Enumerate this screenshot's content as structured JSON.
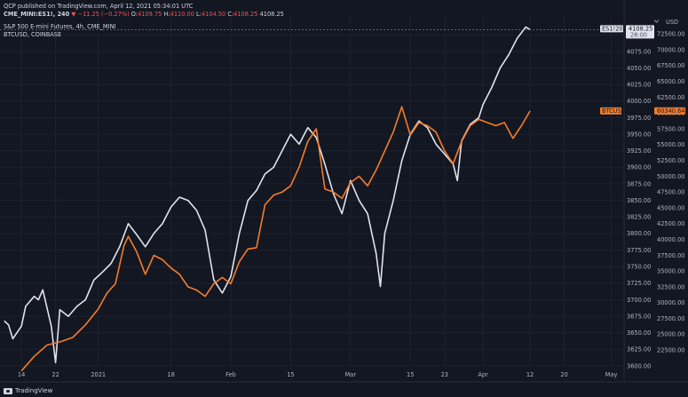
{
  "header": {
    "published_line": "QCP published on TradingView.com, April 12, 2021 05:34:01 UTC",
    "symbol": "CME_MINI:ES1!, 240",
    "change_symbol": "▼",
    "change": "−11.25 (−0.27%)",
    "o_label": "O:",
    "o_value": "4109.75",
    "h_label": "H:",
    "h_value": "4110.00",
    "l_label": "L:",
    "l_value": "4104.50",
    "c_label": "C:",
    "c_value": "4108.25",
    "last": "4108.25",
    "legend_1": "S&P 500 E-mini Futures, 4h, CME_MINI",
    "legend_2": "BTCUSD, COINBASE"
  },
  "currency_label": "USD",
  "currency_menu_icon": "chevron-down-icon",
  "footer": {
    "brand": "TradingView",
    "logo_icon": "tradingview-logo-icon"
  },
  "colors": {
    "background": "#131722",
    "es": "#e0e3eb",
    "btc": "#f57c2a",
    "text": "#b2b5be"
  },
  "chart_data": {
    "type": "line",
    "x_tick_labels": [
      "14",
      "22",
      "2021",
      "18",
      "Feb",
      "15",
      "Mar",
      "15",
      "23",
      "Apr",
      "12",
      "20",
      "May"
    ],
    "x_tick_dates": [
      "2020-12-14",
      "2020-12-22",
      "2021-01-01",
      "2021-01-18",
      "2021-02-01",
      "2021-02-15",
      "2021-03-01",
      "2021-03-15",
      "2021-03-23",
      "2021-04-01",
      "2021-04-12",
      "2021-04-20",
      "2021-05-01"
    ],
    "xlim": [
      "2020-12-09",
      "2021-05-04"
    ],
    "axes": [
      {
        "name": "ES",
        "position": "right-inner",
        "ylim": [
          3600,
          4130
        ],
        "ticks": [
          3600,
          3625,
          3650,
          3675,
          3700,
          3725,
          3750,
          3775,
          3800,
          3825,
          3850,
          3875,
          3900,
          3925,
          3950,
          3975,
          4000,
          4025,
          4050,
          4075,
          4100
        ],
        "tick_labels": [
          "3600.00",
          "3625.00",
          "3650.00",
          "3675.00",
          "3700.00",
          "3725.00",
          "3750.00",
          "3775.00",
          "3800.00",
          "3825.00",
          "3850.00",
          "3875.00",
          "3900.00",
          "3925.00",
          "3950.00",
          "3975.00",
          "4000.00",
          "4025.00",
          "4050.00",
          "4075.00",
          "4100.00"
        ]
      },
      {
        "name": "BTCUSD",
        "position": "right-outer",
        "ylim": [
          20000,
          75500
        ],
        "ticks": [
          22500,
          25000,
          27500,
          30000,
          32500,
          35000,
          37500,
          40000,
          42500,
          45000,
          47500,
          50000,
          52500,
          55000,
          57500,
          60000,
          62500,
          65000,
          67500,
          70000,
          72500
        ],
        "tick_labels": [
          "22500.00",
          "25000.00",
          "27500.00",
          "30000.00",
          "32500.00",
          "35000.00",
          "37500.00",
          "40000.00",
          "42500.00",
          "45000.00",
          "47500.00",
          "50000.00",
          "52500.00",
          "55000.00",
          "57500.00",
          "60000.00",
          "62500.00",
          "65000.00",
          "67500.00",
          "70000.00",
          "72500.00"
        ]
      }
    ],
    "grid": true,
    "series": [
      {
        "name": "ES1!",
        "axis": "ES",
        "color": "#e0e3eb",
        "price_badge": "4108.25",
        "badge_name": "ES1!2021",
        "badge_time": "26:00",
        "points": [
          [
            "2020-12-10",
            3668
          ],
          [
            "2020-12-11",
            3662
          ],
          [
            "2020-12-12",
            3641
          ],
          [
            "2020-12-14",
            3660
          ],
          [
            "2020-12-15",
            3690
          ],
          [
            "2020-12-17",
            3705
          ],
          [
            "2020-12-18",
            3700
          ],
          [
            "2020-12-19",
            3715
          ],
          [
            "2020-12-21",
            3660
          ],
          [
            "2020-12-22",
            3605
          ],
          [
            "2020-12-23",
            3685
          ],
          [
            "2020-12-25",
            3675
          ],
          [
            "2020-12-27",
            3690
          ],
          [
            "2020-12-29",
            3700
          ],
          [
            "2020-12-31",
            3730
          ],
          [
            "2021-01-02",
            3742
          ],
          [
            "2021-01-04",
            3755
          ],
          [
            "2021-01-06",
            3780
          ],
          [
            "2021-01-08",
            3815
          ],
          [
            "2021-01-10",
            3798
          ],
          [
            "2021-01-12",
            3780
          ],
          [
            "2021-01-14",
            3800
          ],
          [
            "2021-01-16",
            3815
          ],
          [
            "2021-01-18",
            3840
          ],
          [
            "2021-01-20",
            3855
          ],
          [
            "2021-01-22",
            3850
          ],
          [
            "2021-01-24",
            3835
          ],
          [
            "2021-01-26",
            3805
          ],
          [
            "2021-01-28",
            3730
          ],
          [
            "2021-01-30",
            3710
          ],
          [
            "2021-02-01",
            3735
          ],
          [
            "2021-02-03",
            3800
          ],
          [
            "2021-02-05",
            3850
          ],
          [
            "2021-02-07",
            3865
          ],
          [
            "2021-02-09",
            3890
          ],
          [
            "2021-02-11",
            3900
          ],
          [
            "2021-02-13",
            3925
          ],
          [
            "2021-02-15",
            3950
          ],
          [
            "2021-02-17",
            3935
          ],
          [
            "2021-02-19",
            3960
          ],
          [
            "2021-02-21",
            3945
          ],
          [
            "2021-02-23",
            3905
          ],
          [
            "2021-02-25",
            3860
          ],
          [
            "2021-02-27",
            3830
          ],
          [
            "2021-03-01",
            3880
          ],
          [
            "2021-03-03",
            3850
          ],
          [
            "2021-03-05",
            3830
          ],
          [
            "2021-03-07",
            3770
          ],
          [
            "2021-03-08",
            3720
          ],
          [
            "2021-03-09",
            3800
          ],
          [
            "2021-03-11",
            3850
          ],
          [
            "2021-03-13",
            3910
          ],
          [
            "2021-03-15",
            3950
          ],
          [
            "2021-03-17",
            3970
          ],
          [
            "2021-03-19",
            3960
          ],
          [
            "2021-03-21",
            3935
          ],
          [
            "2021-03-23",
            3920
          ],
          [
            "2021-03-25",
            3905
          ],
          [
            "2021-03-26",
            3880
          ],
          [
            "2021-03-27",
            3940
          ],
          [
            "2021-03-29",
            3965
          ],
          [
            "2021-03-31",
            3975
          ],
          [
            "2021-04-01",
            3995
          ],
          [
            "2021-04-03",
            4020
          ],
          [
            "2021-04-05",
            4050
          ],
          [
            "2021-04-07",
            4070
          ],
          [
            "2021-04-09",
            4095
          ],
          [
            "2021-04-11",
            4112
          ],
          [
            "2021-04-12",
            4108
          ]
        ]
      },
      {
        "name": "BTCUSD",
        "axis": "BTCUSD",
        "color": "#f57c2a",
        "price_badge": "60340.64",
        "badge_name": "BTCUSD",
        "points": [
          [
            "2020-12-14",
            19200
          ],
          [
            "2020-12-17",
            21500
          ],
          [
            "2020-12-20",
            23300
          ],
          [
            "2020-12-23",
            23800
          ],
          [
            "2020-12-26",
            24500
          ],
          [
            "2020-12-29",
            26500
          ],
          [
            "2021-01-01",
            29000
          ],
          [
            "2021-01-03",
            31500
          ],
          [
            "2021-01-05",
            33000
          ],
          [
            "2021-01-07",
            39000
          ],
          [
            "2021-01-08",
            40500
          ],
          [
            "2021-01-10",
            38000
          ],
          [
            "2021-01-12",
            34500
          ],
          [
            "2021-01-14",
            37500
          ],
          [
            "2021-01-16",
            36800
          ],
          [
            "2021-01-18",
            35500
          ],
          [
            "2021-01-20",
            34500
          ],
          [
            "2021-01-22",
            32500
          ],
          [
            "2021-01-24",
            32000
          ],
          [
            "2021-01-26",
            31000
          ],
          [
            "2021-01-28",
            33000
          ],
          [
            "2021-01-30",
            34000
          ],
          [
            "2021-02-01",
            33000
          ],
          [
            "2021-02-03",
            36500
          ],
          [
            "2021-02-05",
            38500
          ],
          [
            "2021-02-07",
            38700
          ],
          [
            "2021-02-09",
            45500
          ],
          [
            "2021-02-11",
            47000
          ],
          [
            "2021-02-13",
            47500
          ],
          [
            "2021-02-15",
            48500
          ],
          [
            "2021-02-17",
            51500
          ],
          [
            "2021-02-19",
            55500
          ],
          [
            "2021-02-21",
            57500
          ],
          [
            "2021-02-23",
            48000
          ],
          [
            "2021-02-25",
            47500
          ],
          [
            "2021-02-27",
            46500
          ],
          [
            "2021-03-01",
            49000
          ],
          [
            "2021-03-03",
            50000
          ],
          [
            "2021-03-05",
            48500
          ],
          [
            "2021-03-07",
            51000
          ],
          [
            "2021-03-09",
            54000
          ],
          [
            "2021-03-11",
            57000
          ],
          [
            "2021-03-13",
            61000
          ],
          [
            "2021-03-15",
            56500
          ],
          [
            "2021-03-17",
            58500
          ],
          [
            "2021-03-19",
            58000
          ],
          [
            "2021-03-21",
            57000
          ],
          [
            "2021-03-23",
            54000
          ],
          [
            "2021-03-25",
            52000
          ],
          [
            "2021-03-27",
            55500
          ],
          [
            "2021-03-29",
            58000
          ],
          [
            "2021-03-31",
            59000
          ],
          [
            "2021-04-02",
            58500
          ],
          [
            "2021-04-04",
            58000
          ],
          [
            "2021-04-06",
            58500
          ],
          [
            "2021-04-08",
            56000
          ],
          [
            "2021-04-10",
            58000
          ],
          [
            "2021-04-12",
            60340
          ]
        ]
      }
    ]
  }
}
